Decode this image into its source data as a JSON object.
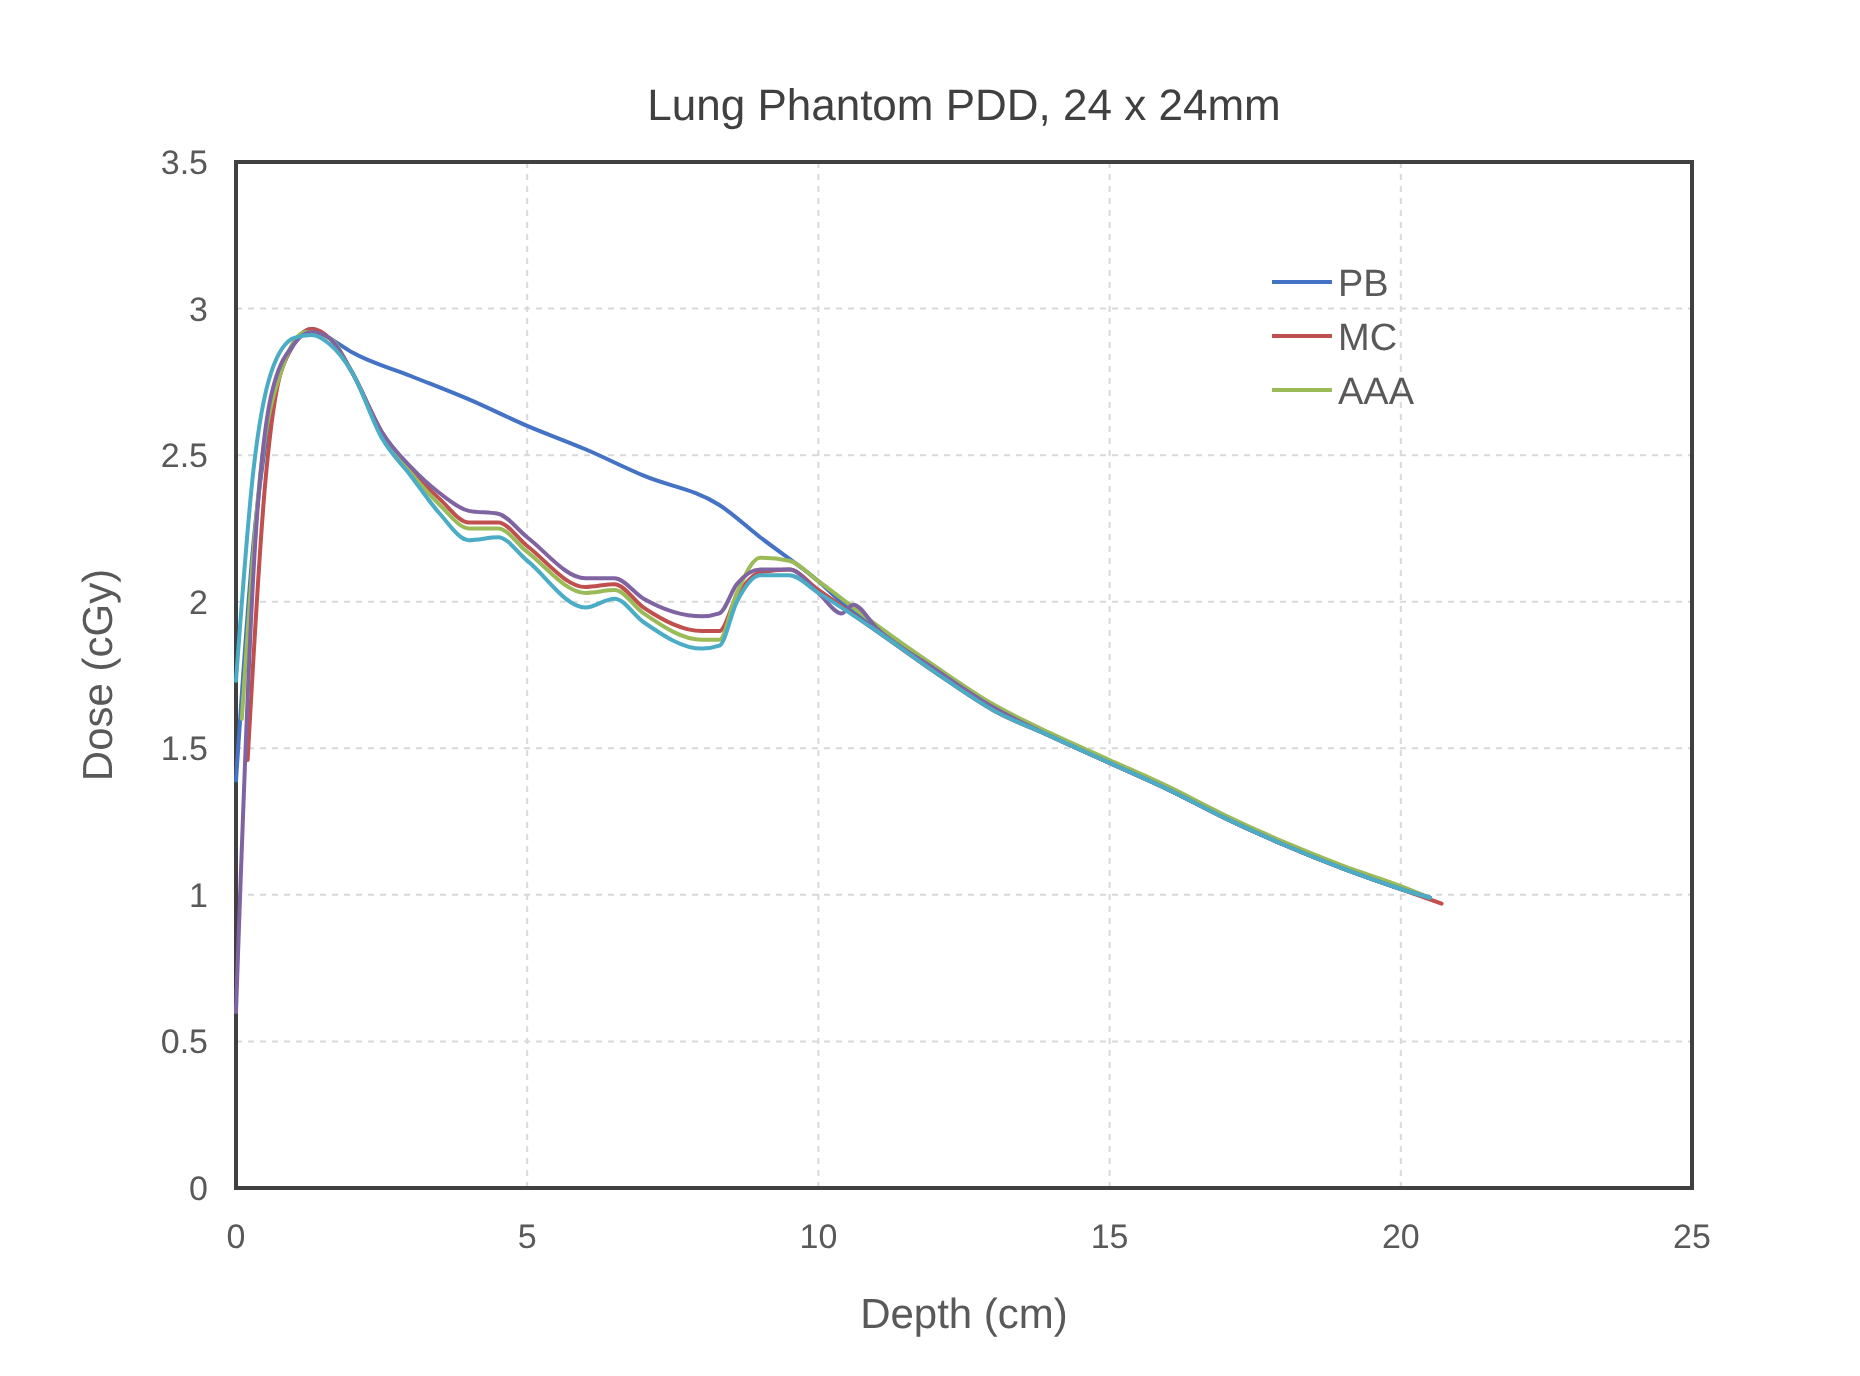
{
  "chart_data": {
    "type": "line",
    "title": "Lung Phantom PDD, 24 x 24mm",
    "xlabel": "Depth (cm)",
    "ylabel": "Dose (cGy)",
    "xlim": [
      0,
      25
    ],
    "xticks": [
      0,
      5,
      10,
      15,
      20,
      25
    ],
    "ylim": [
      0,
      3.5
    ],
    "yticks": [
      0,
      0.5,
      1,
      1.5,
      2,
      2.5,
      3,
      3.5
    ],
    "grid": true,
    "legend": "top right",
    "marker": "none",
    "line_style": "solid",
    "series": [
      {
        "name": "PB",
        "color": "#4472c4",
        "x": [
          0,
          0.3,
          0.6,
          1,
          1.3,
          1.6,
          2,
          3,
          4,
          5,
          6,
          7,
          8.3,
          9,
          10,
          10.5,
          11,
          12,
          13,
          14,
          15,
          16,
          17,
          18,
          19,
          20,
          20.5
        ],
        "values": [
          1.39,
          2.2,
          2.65,
          2.88,
          2.93,
          2.9,
          2.85,
          2.77,
          2.69,
          2.6,
          2.52,
          2.43,
          2.33,
          2.22,
          2.07,
          1.98,
          1.91,
          1.77,
          1.64,
          1.54,
          1.45,
          1.36,
          1.26,
          1.17,
          1.09,
          1.02,
          0.99
        ]
      },
      {
        "name": "MC",
        "color": "#c0504d",
        "x": [
          0.2,
          0.5,
          0.8,
          1.3,
          1.6,
          2,
          2.5,
          3,
          3.5,
          4,
          4.5,
          5,
          6,
          6.5,
          7,
          8,
          8.3,
          8.6,
          9,
          9.5,
          10,
          11,
          12,
          13,
          14,
          15,
          16,
          17,
          18,
          19,
          20,
          20.7
        ],
        "values": [
          1.46,
          2.4,
          2.8,
          2.93,
          2.9,
          2.78,
          2.58,
          2.45,
          2.35,
          2.27,
          2.27,
          2.19,
          2.05,
          2.06,
          1.98,
          1.9,
          1.9,
          2.02,
          2.1,
          2.11,
          2.04,
          1.9,
          1.76,
          1.63,
          1.54,
          1.45,
          1.36,
          1.26,
          1.17,
          1.09,
          1.02,
          0.97
        ]
      },
      {
        "name": "AAA",
        "color": "#9bbb59",
        "x": [
          0.1,
          0.4,
          0.8,
          1.2,
          1.6,
          2,
          2.5,
          3,
          3.5,
          4,
          4.5,
          5,
          6,
          6.5,
          7,
          8,
          8.3,
          8.6,
          9,
          9.5,
          10,
          11,
          12,
          13,
          14,
          15,
          16,
          17,
          18,
          19,
          20,
          20.5
        ],
        "values": [
          1.6,
          2.4,
          2.8,
          2.92,
          2.9,
          2.78,
          2.57,
          2.44,
          2.33,
          2.25,
          2.25,
          2.17,
          2.03,
          2.04,
          1.96,
          1.87,
          1.87,
          2.03,
          2.15,
          2.14,
          2.07,
          1.92,
          1.78,
          1.65,
          1.55,
          1.46,
          1.37,
          1.27,
          1.18,
          1.1,
          1.03,
          0.99
        ]
      },
      {
        "color": "#8064a2",
        "x": [
          0,
          0.3,
          0.6,
          1,
          1.3,
          1.6,
          2,
          2.5,
          3,
          3.5,
          4,
          4.5,
          5,
          6,
          6.5,
          7,
          8,
          8.3,
          8.6,
          9,
          9.5,
          10,
          10.4,
          10.6,
          11,
          12,
          13,
          14,
          15,
          16,
          17,
          18,
          19,
          20,
          20.5
        ],
        "values": [
          0.6,
          2.1,
          2.7,
          2.88,
          2.92,
          2.9,
          2.78,
          2.58,
          2.46,
          2.37,
          2.31,
          2.3,
          2.22,
          2.08,
          2.08,
          2.01,
          1.95,
          1.96,
          2.06,
          2.11,
          2.11,
          2.03,
          1.96,
          1.99,
          1.91,
          1.77,
          1.64,
          1.54,
          1.45,
          1.36,
          1.26,
          1.17,
          1.09,
          1.02,
          0.99
        ]
      },
      {
        "color": "#4bacc6",
        "x": [
          0,
          0.3,
          0.6,
          1,
          1.3,
          1.6,
          2,
          2.5,
          3,
          3.5,
          4,
          4.5,
          5,
          6,
          6.5,
          7,
          8,
          8.3,
          8.6,
          9,
          9.5,
          10,
          11,
          12,
          13,
          14,
          15,
          16,
          17,
          18,
          19,
          20,
          20.5
        ],
        "values": [
          1.73,
          2.45,
          2.78,
          2.9,
          2.91,
          2.88,
          2.78,
          2.56,
          2.43,
          2.3,
          2.21,
          2.22,
          2.14,
          1.98,
          2.01,
          1.93,
          1.84,
          1.85,
          2.0,
          2.09,
          2.09,
          2.03,
          1.9,
          1.76,
          1.63,
          1.54,
          1.45,
          1.36,
          1.26,
          1.17,
          1.09,
          1.02,
          0.99
        ]
      }
    ]
  }
}
